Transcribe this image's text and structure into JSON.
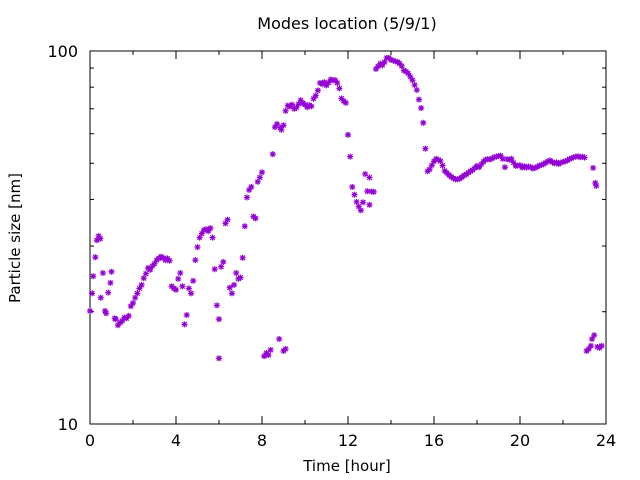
{
  "chart_data": {
    "type": "scatter",
    "title": "Modes location (5/9/1)",
    "xlabel": "Time [hour]",
    "ylabel": "Particle size [nm]",
    "xlim": [
      0,
      24
    ],
    "ylim": [
      10,
      100
    ],
    "yscale": "log",
    "grid": false,
    "legend": "none",
    "marker": "asterisk",
    "color": "#9400d3",
    "xticks": [
      {
        "value": 0,
        "label": "0"
      },
      {
        "value": 4,
        "label": "4"
      },
      {
        "value": 8,
        "label": "8"
      },
      {
        "value": 12,
        "label": "12"
      },
      {
        "value": 16,
        "label": "16"
      },
      {
        "value": 20,
        "label": "20"
      },
      {
        "value": 24,
        "label": "24"
      }
    ],
    "yticks": [
      {
        "value": 10,
        "label": "10"
      },
      {
        "value": 100,
        "label": "100"
      }
    ],
    "series": [
      {
        "points": [
          [
            0.0,
            20.1
          ],
          [
            0.1,
            22.4
          ],
          [
            0.15,
            24.9
          ],
          [
            0.25,
            28.0
          ],
          [
            0.32,
            31.1
          ],
          [
            0.4,
            31.9
          ],
          [
            0.48,
            31.4
          ],
          [
            0.5,
            21.8
          ],
          [
            0.6,
            25.4
          ],
          [
            0.7,
            20.1
          ],
          [
            0.75,
            19.8
          ],
          [
            0.85,
            22.5
          ],
          [
            0.95,
            23.9
          ],
          [
            1.0,
            25.6
          ],
          [
            1.15,
            19.2
          ],
          [
            1.2,
            19.1
          ],
          [
            1.3,
            18.4
          ],
          [
            1.4,
            18.7
          ],
          [
            1.5,
            18.9
          ],
          [
            1.6,
            19.3
          ],
          [
            1.7,
            19.2
          ],
          [
            1.8,
            19.5
          ],
          [
            1.9,
            20.7
          ],
          [
            2.0,
            21.1
          ],
          [
            2.1,
            21.8
          ],
          [
            2.2,
            22.4
          ],
          [
            2.3,
            23.1
          ],
          [
            2.4,
            23.6
          ],
          [
            2.5,
            24.6
          ],
          [
            2.6,
            25.3
          ],
          [
            2.7,
            26.2
          ],
          [
            2.8,
            25.9
          ],
          [
            2.9,
            26.5
          ],
          [
            3.0,
            26.9
          ],
          [
            3.1,
            27.5
          ],
          [
            3.2,
            27.8
          ],
          [
            3.3,
            28.1
          ],
          [
            3.4,
            27.9
          ],
          [
            3.5,
            27.5
          ],
          [
            3.6,
            27.8
          ],
          [
            3.7,
            27.4
          ],
          [
            3.8,
            23.4
          ],
          [
            3.9,
            23.1
          ],
          [
            4.0,
            22.9
          ],
          [
            4.1,
            24.5
          ],
          [
            4.2,
            25.4
          ],
          [
            4.3,
            23.4
          ],
          [
            4.4,
            18.5
          ],
          [
            4.5,
            19.6
          ],
          [
            4.6,
            23.1
          ],
          [
            4.7,
            22.4
          ],
          [
            4.8,
            24.2
          ],
          [
            4.9,
            27.5
          ],
          [
            5.0,
            29.8
          ],
          [
            5.1,
            31.6
          ],
          [
            5.2,
            32.4
          ],
          [
            5.3,
            33.1
          ],
          [
            5.4,
            33.3
          ],
          [
            5.5,
            32.9
          ],
          [
            5.6,
            33.5
          ],
          [
            5.7,
            31.6
          ],
          [
            5.8,
            26.0
          ],
          [
            5.9,
            20.8
          ],
          [
            6.0,
            15.0
          ],
          [
            6.0,
            19.1
          ],
          [
            6.1,
            26.4
          ],
          [
            6.2,
            27.2
          ],
          [
            6.3,
            34.5
          ],
          [
            6.4,
            35.3
          ],
          [
            6.5,
            23.2
          ],
          [
            6.6,
            22.4
          ],
          [
            6.7,
            23.6
          ],
          [
            6.8,
            25.4
          ],
          [
            6.9,
            24.5
          ],
          [
            7.0,
            24.7
          ],
          [
            7.1,
            27.9
          ],
          [
            7.2,
            33.9
          ],
          [
            7.3,
            40.5
          ],
          [
            7.4,
            42.4
          ],
          [
            7.5,
            43.2
          ],
          [
            7.6,
            36.0
          ],
          [
            7.7,
            35.6
          ],
          [
            7.8,
            44.6
          ],
          [
            7.9,
            45.8
          ],
          [
            8.0,
            47.3
          ],
          [
            8.1,
            15.2
          ],
          [
            8.2,
            15.5
          ],
          [
            8.3,
            15.3
          ],
          [
            8.4,
            15.8
          ],
          [
            8.5,
            52.9
          ],
          [
            8.6,
            62.5
          ],
          [
            8.7,
            63.7
          ],
          [
            8.8,
            16.9
          ],
          [
            8.85,
            62.3
          ],
          [
            8.9,
            61.5
          ],
          [
            9.0,
            15.7
          ],
          [
            9.0,
            63.2
          ],
          [
            9.1,
            15.9
          ],
          [
            9.1,
            69.1
          ],
          [
            9.2,
            71.4
          ],
          [
            9.3,
            70.9
          ],
          [
            9.4,
            71.8
          ],
          [
            9.5,
            70.0
          ],
          [
            9.6,
            70.5
          ],
          [
            9.7,
            72.1
          ],
          [
            9.8,
            73.8
          ],
          [
            9.9,
            72.5
          ],
          [
            10.0,
            71.8
          ],
          [
            10.1,
            70.7
          ],
          [
            10.2,
            71.6
          ],
          [
            10.3,
            71.1
          ],
          [
            10.4,
            74.5
          ],
          [
            10.5,
            75.9
          ],
          [
            10.6,
            78.4
          ],
          [
            10.7,
            82.1
          ],
          [
            10.8,
            81.5
          ],
          [
            10.9,
            82.5
          ],
          [
            11.0,
            80.9
          ],
          [
            11.1,
            82.3
          ],
          [
            11.2,
            83.9
          ],
          [
            11.3,
            83.4
          ],
          [
            11.4,
            83.6
          ],
          [
            11.5,
            82.1
          ],
          [
            11.6,
            79.4
          ],
          [
            11.7,
            74.6
          ],
          [
            11.8,
            73.4
          ],
          [
            11.9,
            72.6
          ],
          [
            12.0,
            59.6
          ],
          [
            12.1,
            52.1
          ],
          [
            12.2,
            43.2
          ],
          [
            12.3,
            41.2
          ],
          [
            12.4,
            39.4
          ],
          [
            12.5,
            38.3
          ],
          [
            12.6,
            37.4
          ],
          [
            12.7,
            39.3
          ],
          [
            12.8,
            46.8
          ],
          [
            12.9,
            42.1
          ],
          [
            13.0,
            45.8
          ],
          [
            13.0,
            38.7
          ],
          [
            13.1,
            42.0
          ],
          [
            13.2,
            41.9
          ],
          [
            13.3,
            89.5
          ],
          [
            13.4,
            91.0
          ],
          [
            13.5,
            92.5
          ],
          [
            13.6,
            91.6
          ],
          [
            13.7,
            93.4
          ],
          [
            13.8,
            95.8
          ],
          [
            13.9,
            95.9
          ],
          [
            14.0,
            94.7
          ],
          [
            14.1,
            94.3
          ],
          [
            14.2,
            93.8
          ],
          [
            14.3,
            93.5
          ],
          [
            14.4,
            92.6
          ],
          [
            14.5,
            91.1
          ],
          [
            14.6,
            88.7
          ],
          [
            14.7,
            88.1
          ],
          [
            14.8,
            87.1
          ],
          [
            14.9,
            85.3
          ],
          [
            15.0,
            83.5
          ],
          [
            15.1,
            81.1
          ],
          [
            15.2,
            78.6
          ],
          [
            15.3,
            74.1
          ],
          [
            15.4,
            70.3
          ],
          [
            15.5,
            64.2
          ],
          [
            15.6,
            54.7
          ],
          [
            15.7,
            47.6
          ],
          [
            15.8,
            48.2
          ],
          [
            15.9,
            49.4
          ],
          [
            16.0,
            50.6
          ],
          [
            16.1,
            51.4
          ],
          [
            16.2,
            51.1
          ],
          [
            16.3,
            50.7
          ],
          [
            16.4,
            49.3
          ],
          [
            16.5,
            47.7
          ],
          [
            16.6,
            47.1
          ],
          [
            16.7,
            46.5
          ],
          [
            16.8,
            46.0
          ],
          [
            16.9,
            45.6
          ],
          [
            17.0,
            45.3
          ],
          [
            17.1,
            45.3
          ],
          [
            17.2,
            45.5
          ],
          [
            17.3,
            45.9
          ],
          [
            17.4,
            46.4
          ],
          [
            17.5,
            46.7
          ],
          [
            17.6,
            47.2
          ],
          [
            17.7,
            47.6
          ],
          [
            17.8,
            48.0
          ],
          [
            17.9,
            48.6
          ],
          [
            18.0,
            49.2
          ],
          [
            18.1,
            48.8
          ],
          [
            18.2,
            49.7
          ],
          [
            18.3,
            50.5
          ],
          [
            18.4,
            51.1
          ],
          [
            18.5,
            51.3
          ],
          [
            18.6,
            51.2
          ],
          [
            18.7,
            51.5
          ],
          [
            18.8,
            51.9
          ],
          [
            18.9,
            52.1
          ],
          [
            19.0,
            52.3
          ],
          [
            19.1,
            52.4
          ],
          [
            19.2,
            51.4
          ],
          [
            19.3,
            48.8
          ],
          [
            19.4,
            51.3
          ],
          [
            19.5,
            51.1
          ],
          [
            19.6,
            51.4
          ],
          [
            19.7,
            50.2
          ],
          [
            19.8,
            49.2
          ],
          [
            19.9,
            49.3
          ],
          [
            20.0,
            49.4
          ],
          [
            20.1,
            48.7
          ],
          [
            20.2,
            49.1
          ],
          [
            20.3,
            48.7
          ],
          [
            20.4,
            49.0
          ],
          [
            20.5,
            48.8
          ],
          [
            20.6,
            48.4
          ],
          [
            20.7,
            48.6
          ],
          [
            20.8,
            48.9
          ],
          [
            20.9,
            49.3
          ],
          [
            21.0,
            49.5
          ],
          [
            21.1,
            49.8
          ],
          [
            21.2,
            50.2
          ],
          [
            21.3,
            50.6
          ],
          [
            21.4,
            50.9
          ],
          [
            21.5,
            50.4
          ],
          [
            21.6,
            50.0
          ],
          [
            21.7,
            50.3
          ],
          [
            21.8,
            49.8
          ],
          [
            21.9,
            50.2
          ],
          [
            22.0,
            50.4
          ],
          [
            22.1,
            50.6
          ],
          [
            22.2,
            50.9
          ],
          [
            22.3,
            51.3
          ],
          [
            22.4,
            51.6
          ],
          [
            22.5,
            51.9
          ],
          [
            22.6,
            52.1
          ],
          [
            22.7,
            52.2
          ],
          [
            22.8,
            51.9
          ],
          [
            22.9,
            52.1
          ],
          [
            23.0,
            51.8
          ],
          [
            23.1,
            15.7
          ],
          [
            23.2,
            15.9
          ],
          [
            23.3,
            16.2
          ],
          [
            23.35,
            16.9
          ],
          [
            23.4,
            48.6
          ],
          [
            23.45,
            17.3
          ],
          [
            23.5,
            44.3
          ],
          [
            23.55,
            43.5
          ],
          [
            23.6,
            16.1
          ],
          [
            23.7,
            16.0
          ],
          [
            23.8,
            16.2
          ]
        ]
      }
    ]
  }
}
